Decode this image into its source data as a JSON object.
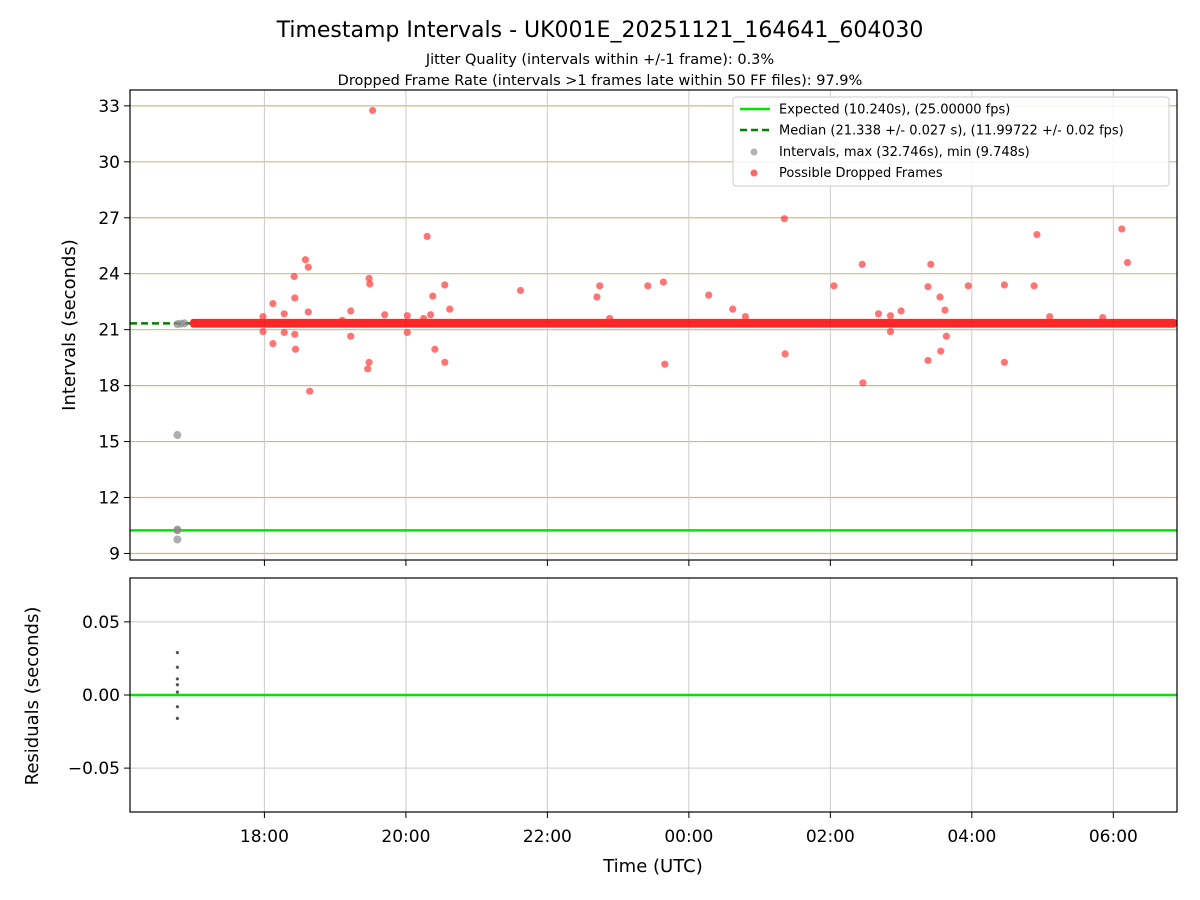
{
  "chart_data": [
    {
      "type": "scatter",
      "title": "Timestamp Intervals - UK001E_20251121_164641_604030",
      "subtitle_lines": [
        "Jitter Quality (intervals within +/-1 frame): 0.3%",
        "Dropped Frame Rate (intervals >1 frames late within 50 FF files): 97.9%"
      ],
      "xlabel": "",
      "ylabel": "Intervals (seconds)",
      "xlim": [
        16.1,
        30.9
      ],
      "ylim": [
        8.65,
        33.85
      ],
      "yticks": [
        {
          "value": 9,
          "label": "9"
        },
        {
          "value": 12,
          "label": "12"
        },
        {
          "value": 15,
          "label": "15"
        },
        {
          "value": 18,
          "label": "18"
        },
        {
          "value": 21,
          "label": "21"
        },
        {
          "value": 24,
          "label": "24"
        },
        {
          "value": 27,
          "label": "27"
        },
        {
          "value": 30,
          "label": "30"
        },
        {
          "value": 33,
          "label": "33"
        }
      ],
      "xticks": [
        {
          "value": 18,
          "label": "18:00"
        },
        {
          "value": 20,
          "label": "20:00"
        },
        {
          "value": 22,
          "label": "22:00"
        },
        {
          "value": 24,
          "label": "00:00"
        },
        {
          "value": 26,
          "label": "02:00"
        },
        {
          "value": 28,
          "label": "04:00"
        },
        {
          "value": 30,
          "label": "06:00"
        }
      ],
      "grid": true,
      "grid_color_horizontal": "#d4b97a",
      "grid_color_vertical": "#cccccc",
      "expected_interval": 10.24,
      "median_interval": 21.338,
      "median_line_extent_hours": [
        16.1,
        16.95
      ],
      "legend_position": "top-right",
      "legend": [
        {
          "label": "Expected (10.240s), (25.00000 fps)",
          "kind": "line",
          "color": "#00e600"
        },
        {
          "label": "Median (21.338 +/- 0.027 s), (11.99722 +/- 0.02 fps)",
          "kind": "dashed",
          "color": "#008000"
        },
        {
          "label": "Intervals, max (32.746s), min (9.748s)",
          "kind": "dot",
          "color": "#999999"
        },
        {
          "label": "Possible Dropped Frames",
          "kind": "dot",
          "color": "#ff3333"
        }
      ],
      "band": {
        "x_start": 16.95,
        "x_end": 30.9,
        "y_low": 21.27,
        "y_high": 21.42,
        "color": "#ff0000"
      },
      "gray_points": [
        {
          "x": 16.77,
          "y": 9.75
        },
        {
          "x": 16.77,
          "y": 10.24
        },
        {
          "x": 16.77,
          "y": 10.28
        },
        {
          "x": 16.77,
          "y": 15.35
        },
        {
          "x": 16.77,
          "y": 21.3
        },
        {
          "x": 16.82,
          "y": 21.32
        },
        {
          "x": 16.87,
          "y": 21.34
        }
      ],
      "dropped_points": [
        {
          "x": 17.98,
          "y": 21.7
        },
        {
          "x": 17.98,
          "y": 20.9
        },
        {
          "x": 18.12,
          "y": 22.4
        },
        {
          "x": 18.12,
          "y": 20.25
        },
        {
          "x": 18.28,
          "y": 21.85
        },
        {
          "x": 18.28,
          "y": 20.85
        },
        {
          "x": 18.42,
          "y": 23.85
        },
        {
          "x": 18.43,
          "y": 22.7
        },
        {
          "x": 18.43,
          "y": 20.75
        },
        {
          "x": 18.44,
          "y": 19.95
        },
        {
          "x": 18.58,
          "y": 24.75
        },
        {
          "x": 18.62,
          "y": 24.35
        },
        {
          "x": 18.62,
          "y": 21.95
        },
        {
          "x": 18.64,
          "y": 17.7
        },
        {
          "x": 19.1,
          "y": 21.5
        },
        {
          "x": 19.22,
          "y": 22.0
        },
        {
          "x": 19.22,
          "y": 20.65
        },
        {
          "x": 19.48,
          "y": 23.75
        },
        {
          "x": 19.49,
          "y": 23.45
        },
        {
          "x": 19.48,
          "y": 19.25
        },
        {
          "x": 19.46,
          "y": 18.9
        },
        {
          "x": 19.53,
          "y": 32.75
        },
        {
          "x": 19.7,
          "y": 21.8
        },
        {
          "x": 20.02,
          "y": 21.75
        },
        {
          "x": 20.02,
          "y": 20.85
        },
        {
          "x": 20.25,
          "y": 21.6
        },
        {
          "x": 20.3,
          "y": 26.0
        },
        {
          "x": 20.35,
          "y": 21.8
        },
        {
          "x": 20.38,
          "y": 22.8
        },
        {
          "x": 20.41,
          "y": 19.95
        },
        {
          "x": 20.55,
          "y": 23.4
        },
        {
          "x": 20.55,
          "y": 19.25
        },
        {
          "x": 20.62,
          "y": 22.1
        },
        {
          "x": 21.62,
          "y": 23.1
        },
        {
          "x": 22.7,
          "y": 22.75
        },
        {
          "x": 22.74,
          "y": 23.35
        },
        {
          "x": 22.88,
          "y": 21.6
        },
        {
          "x": 23.42,
          "y": 23.35
        },
        {
          "x": 23.64,
          "y": 23.55
        },
        {
          "x": 23.66,
          "y": 19.15
        },
        {
          "x": 24.28,
          "y": 22.85
        },
        {
          "x": 24.62,
          "y": 22.1
        },
        {
          "x": 24.8,
          "y": 21.7
        },
        {
          "x": 25.35,
          "y": 26.95
        },
        {
          "x": 25.36,
          "y": 19.7
        },
        {
          "x": 26.05,
          "y": 23.35
        },
        {
          "x": 26.45,
          "y": 24.5
        },
        {
          "x": 26.46,
          "y": 18.15
        },
        {
          "x": 26.68,
          "y": 21.85
        },
        {
          "x": 26.85,
          "y": 21.75
        },
        {
          "x": 26.85,
          "y": 20.9
        },
        {
          "x": 27.0,
          "y": 22.0
        },
        {
          "x": 27.38,
          "y": 23.3
        },
        {
          "x": 27.42,
          "y": 24.5
        },
        {
          "x": 27.38,
          "y": 19.35
        },
        {
          "x": 27.55,
          "y": 22.75
        },
        {
          "x": 27.62,
          "y": 22.05
        },
        {
          "x": 27.64,
          "y": 20.65
        },
        {
          "x": 27.56,
          "y": 19.85
        },
        {
          "x": 27.95,
          "y": 23.35
        },
        {
          "x": 28.46,
          "y": 23.4
        },
        {
          "x": 28.46,
          "y": 19.25
        },
        {
          "x": 28.88,
          "y": 23.35
        },
        {
          "x": 28.92,
          "y": 26.1
        },
        {
          "x": 29.1,
          "y": 21.7
        },
        {
          "x": 29.85,
          "y": 21.65
        },
        {
          "x": 30.12,
          "y": 26.4
        },
        {
          "x": 30.2,
          "y": 24.6
        }
      ]
    },
    {
      "type": "scatter",
      "xlabel": "Time (UTC)",
      "ylabel": "Residuals (seconds)",
      "xlim": [
        16.1,
        30.9
      ],
      "ylim": [
        -0.08,
        0.08
      ],
      "yticks": [
        {
          "value": 0.05,
          "label": "0.05"
        },
        {
          "value": 0.0,
          "label": "0.00"
        },
        {
          "value": -0.05,
          "label": "−0.05"
        }
      ],
      "grid": true,
      "zero_line_color": "#00e600",
      "points": [
        {
          "x": 16.77,
          "y": 0.029
        },
        {
          "x": 16.77,
          "y": 0.019
        },
        {
          "x": 16.77,
          "y": 0.011
        },
        {
          "x": 16.77,
          "y": 0.007
        },
        {
          "x": 16.77,
          "y": 0.002
        },
        {
          "x": 16.77,
          "y": -0.008
        },
        {
          "x": 16.77,
          "y": -0.016
        }
      ]
    }
  ]
}
